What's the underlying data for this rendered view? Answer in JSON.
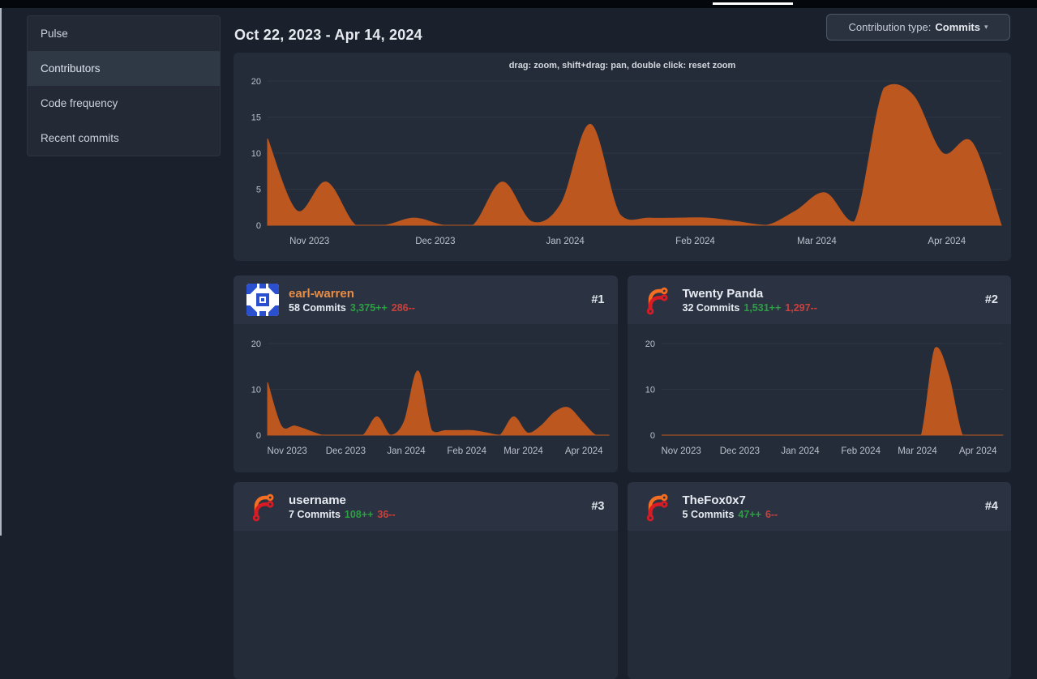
{
  "window": {
    "top_bar": {
      "active_tab_indicator": true
    }
  },
  "sidebar": {
    "items": [
      {
        "label": "Pulse",
        "active": false
      },
      {
        "label": "Contributors",
        "active": true
      },
      {
        "label": "Code frequency",
        "active": false
      },
      {
        "label": "Recent commits",
        "active": false
      }
    ]
  },
  "header": {
    "date_range": "Oct 22, 2023 - Apr 14, 2024",
    "contribution_type": {
      "label": "Contribution type:",
      "value": "Commits",
      "caret": "▾"
    }
  },
  "main_chart": {
    "hint": "drag: zoom, shift+drag: pan, double click: reset zoom"
  },
  "contributors": [
    {
      "name": "earl-warren",
      "rank": "#1",
      "commits": "58",
      "commits_word": "Commits",
      "additions": "3,375++",
      "deletions": "286--",
      "avatar": "identicon-avatar",
      "linked": true,
      "chart_id": "earl-warren-weekly"
    },
    {
      "name": "Twenty Panda",
      "rank": "#2",
      "commits": "32",
      "commits_word": "Commits",
      "additions": "1,531++",
      "deletions": "1,297--",
      "avatar": "forgejo-logo-avatar",
      "linked": false,
      "chart_id": "twenty-panda-weekly"
    },
    {
      "name": "username",
      "rank": "#3",
      "commits": "7",
      "commits_word": "Commits",
      "additions": "108++",
      "deletions": "36--",
      "avatar": "forgejo-logo-avatar",
      "linked": false,
      "chart_id": null
    },
    {
      "name": "TheFox0x7",
      "rank": "#4",
      "commits": "5",
      "commits_word": "Commits",
      "additions": "47++",
      "deletions": "6--",
      "avatar": "forgejo-logo-avatar",
      "linked": false,
      "chart_id": null
    }
  ],
  "chart_data": [
    {
      "id": "repo-activity-weekly",
      "type": "area",
      "title": "",
      "xlabel": "",
      "ylabel": "",
      "x": [
        "2023-10-22",
        "2023-10-29",
        "2023-11-05",
        "2023-11-12",
        "2023-11-19",
        "2023-11-26",
        "2023-12-03",
        "2023-12-10",
        "2023-12-17",
        "2023-12-24",
        "2023-12-31",
        "2024-01-07",
        "2024-01-14",
        "2024-01-21",
        "2024-01-28",
        "2024-02-04",
        "2024-02-11",
        "2024-02-18",
        "2024-02-25",
        "2024-03-03",
        "2024-03-10",
        "2024-03-17",
        "2024-03-24",
        "2024-03-31",
        "2024-04-07",
        "2024-04-14"
      ],
      "values": [
        12,
        2,
        6,
        0,
        0,
        1,
        0,
        0,
        6,
        0.5,
        3,
        14,
        1.5,
        1,
        1,
        1,
        0.5,
        0,
        2,
        4.5,
        0.5,
        19,
        18,
        10,
        11.5,
        0
      ],
      "ylim": [
        0,
        20
      ],
      "yticks": [
        0,
        5,
        10,
        15,
        20
      ],
      "xticks": [
        {
          "label": "Nov 2023",
          "day": 10
        },
        {
          "label": "Dec 2023",
          "day": 40
        },
        {
          "label": "Jan 2024",
          "day": 71
        },
        {
          "label": "Feb 2024",
          "day": 102
        },
        {
          "label": "Mar 2024",
          "day": 131
        },
        {
          "label": "Apr 2024",
          "day": 162
        }
      ],
      "total_days": 175,
      "grid": true,
      "legend": "none",
      "series_color": "#bc571f"
    },
    {
      "id": "earl-warren-weekly",
      "type": "area",
      "title": "",
      "xlabel": "",
      "ylabel": "",
      "x": [
        "2023-10-22",
        "2023-10-29",
        "2023-11-05",
        "2023-11-12",
        "2023-11-19",
        "2023-11-26",
        "2023-12-03",
        "2023-12-10",
        "2023-12-17",
        "2023-12-24",
        "2023-12-31",
        "2024-01-07",
        "2024-01-14",
        "2024-01-21",
        "2024-01-28",
        "2024-02-04",
        "2024-02-11",
        "2024-02-18",
        "2024-02-25",
        "2024-03-03",
        "2024-03-10",
        "2024-03-17",
        "2024-03-24",
        "2024-03-31",
        "2024-04-07",
        "2024-04-14"
      ],
      "values": [
        11.5,
        2,
        2,
        1,
        0,
        0,
        0,
        0,
        4,
        0,
        3,
        14,
        1,
        1,
        1,
        1,
        0.5,
        0,
        4,
        0.5,
        2,
        5,
        6,
        3,
        0,
        0
      ],
      "ylim": [
        0,
        20
      ],
      "yticks": [
        0,
        10,
        20
      ],
      "xticks": [
        {
          "label": "Nov 2023",
          "day": 10
        },
        {
          "label": "Dec 2023",
          "day": 40
        },
        {
          "label": "Jan 2024",
          "day": 71
        },
        {
          "label": "Feb 2024",
          "day": 102
        },
        {
          "label": "Mar 2024",
          "day": 131
        },
        {
          "label": "Apr 2024",
          "day": 162
        }
      ],
      "total_days": 175,
      "grid": true,
      "legend": "none",
      "series_color": "#bc571f"
    },
    {
      "id": "twenty-panda-weekly",
      "type": "area",
      "title": "",
      "xlabel": "",
      "ylabel": "",
      "x": [
        "2023-10-22",
        "2023-10-29",
        "2023-11-05",
        "2023-11-12",
        "2023-11-19",
        "2023-11-26",
        "2023-12-03",
        "2023-12-10",
        "2023-12-17",
        "2023-12-24",
        "2023-12-31",
        "2024-01-07",
        "2024-01-14",
        "2024-01-21",
        "2024-01-28",
        "2024-02-04",
        "2024-02-11",
        "2024-02-18",
        "2024-02-25",
        "2024-03-03",
        "2024-03-10",
        "2024-03-17",
        "2024-03-24",
        "2024-03-31",
        "2024-04-07",
        "2024-04-14"
      ],
      "values": [
        0,
        0,
        0,
        0,
        0,
        0,
        0,
        0,
        0,
        0,
        0,
        0,
        0,
        0,
        0,
        0,
        0,
        0,
        0,
        0,
        19,
        13,
        0,
        0,
        0,
        0
      ],
      "ylim": [
        0,
        20
      ],
      "yticks": [
        0,
        10,
        20
      ],
      "xticks": [
        {
          "label": "Nov 2023",
          "day": 10
        },
        {
          "label": "Dec 2023",
          "day": 40
        },
        {
          "label": "Jan 2024",
          "day": 71
        },
        {
          "label": "Feb 2024",
          "day": 102
        },
        {
          "label": "Mar 2024",
          "day": 131
        },
        {
          "label": "Apr 2024",
          "day": 162
        }
      ],
      "total_days": 175,
      "grid": true,
      "legend": "none",
      "series_color": "#bc571f"
    }
  ],
  "colors": {
    "page_bg": "#1a212c",
    "card_bg": "#252c39",
    "card_header_bg": "#2b3342",
    "area_fill": "#bc571f",
    "gridline": "#2f3643",
    "axis_line": "#3b4250",
    "tick_text": "#b9c1cb",
    "link_orange": "#e98d45",
    "additions_green": "#2d9f43",
    "deletions_red": "#c9403c"
  }
}
